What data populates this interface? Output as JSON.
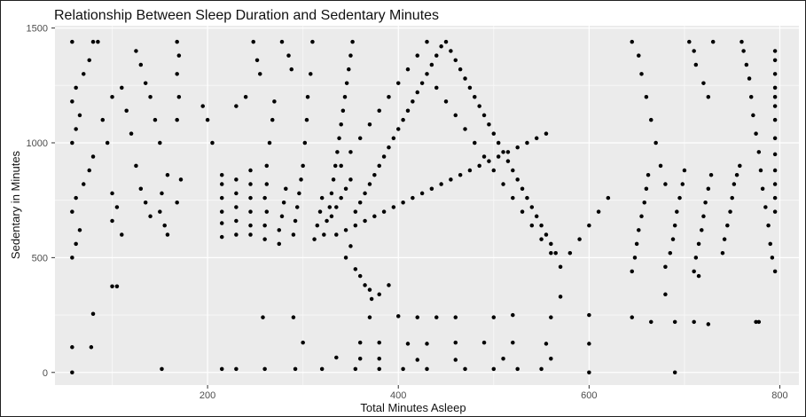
{
  "chart_data": {
    "type": "scatter",
    "title": "Relationship Between Sleep Duration and Sedentary Minutes",
    "xlabel": "Total Minutes Asleep",
    "ylabel": "Sedentary in Minutes",
    "xlim": [
      40,
      820
    ],
    "ylim": [
      -55,
      1510
    ],
    "x_ticks": [
      200,
      400,
      600,
      800
    ],
    "y_ticks": [
      0,
      500,
      1000,
      1500
    ],
    "grid": true,
    "legend": "none",
    "colors": {
      "panel": "#ebebeb",
      "grid": "#ffffff",
      "point": "#000000"
    },
    "points": [
      [
        58,
        0
      ],
      [
        58,
        110
      ],
      [
        78,
        110
      ],
      [
        152,
        15
      ],
      [
        215,
        15
      ],
      [
        230,
        15
      ],
      [
        260,
        15
      ],
      [
        292,
        15
      ],
      [
        320,
        15
      ],
      [
        355,
        15
      ],
      [
        380,
        15
      ],
      [
        405,
        15
      ],
      [
        430,
        15
      ],
      [
        470,
        15
      ],
      [
        500,
        15
      ],
      [
        525,
        15
      ],
      [
        550,
        15
      ],
      [
        600,
        0
      ],
      [
        690,
        0
      ],
      [
        258,
        240
      ],
      [
        290,
        240
      ],
      [
        370,
        240
      ],
      [
        400,
        245
      ],
      [
        420,
        240
      ],
      [
        440,
        240
      ],
      [
        460,
        240
      ],
      [
        500,
        240
      ],
      [
        520,
        250
      ],
      [
        560,
        240
      ],
      [
        600,
        250
      ],
      [
        645,
        240
      ],
      [
        665,
        220
      ],
      [
        690,
        220
      ],
      [
        710,
        220
      ],
      [
        725,
        210
      ],
      [
        775,
        220
      ],
      [
        300,
        130
      ],
      [
        360,
        130
      ],
      [
        380,
        130
      ],
      [
        410,
        125
      ],
      [
        430,
        125
      ],
      [
        460,
        130
      ],
      [
        490,
        130
      ],
      [
        520,
        130
      ],
      [
        555,
        125
      ],
      [
        600,
        125
      ],
      [
        335,
        65
      ],
      [
        360,
        60
      ],
      [
        380,
        60
      ],
      [
        420,
        55
      ],
      [
        460,
        55
      ],
      [
        510,
        60
      ],
      [
        560,
        60
      ],
      [
        80,
        255
      ],
      [
        100,
        375
      ],
      [
        105,
        375
      ],
      [
        680,
        340
      ],
      [
        715,
        420
      ],
      [
        570,
        330
      ],
      [
        58,
        500
      ],
      [
        62,
        560
      ],
      [
        66,
        620
      ],
      [
        58,
        700
      ],
      [
        62,
        760
      ],
      [
        70,
        820
      ],
      [
        76,
        880
      ],
      [
        80,
        940
      ],
      [
        58,
        1000
      ],
      [
        62,
        1060
      ],
      [
        66,
        1120
      ],
      [
        58,
        1180
      ],
      [
        62,
        1240
      ],
      [
        70,
        1300
      ],
      [
        76,
        1360
      ],
      [
        80,
        1440
      ],
      [
        58,
        1440
      ],
      [
        85,
        1440
      ],
      [
        90,
        1100
      ],
      [
        95,
        1000
      ],
      [
        100,
        780
      ],
      [
        105,
        720
      ],
      [
        100,
        660
      ],
      [
        110,
        600
      ],
      [
        100,
        1200
      ],
      [
        110,
        1240
      ],
      [
        115,
        1140
      ],
      [
        120,
        1040
      ],
      [
        125,
        900
      ],
      [
        130,
        800
      ],
      [
        135,
        740
      ],
      [
        140,
        680
      ],
      [
        125,
        1400
      ],
      [
        130,
        1340
      ],
      [
        135,
        1260
      ],
      [
        140,
        1200
      ],
      [
        145,
        1100
      ],
      [
        150,
        1000
      ],
      [
        158,
        860
      ],
      [
        152,
        780
      ],
      [
        150,
        700
      ],
      [
        155,
        640
      ],
      [
        158,
        600
      ],
      [
        168,
        1440
      ],
      [
        170,
        1380
      ],
      [
        168,
        1300
      ],
      [
        170,
        1200
      ],
      [
        168,
        1100
      ],
      [
        168,
        740
      ],
      [
        172,
        840
      ],
      [
        195,
        1160
      ],
      [
        200,
        1100
      ],
      [
        205,
        1000
      ],
      [
        215,
        590
      ],
      [
        215,
        650
      ],
      [
        215,
        700
      ],
      [
        215,
        760
      ],
      [
        215,
        820
      ],
      [
        215,
        860
      ],
      [
        230,
        600
      ],
      [
        230,
        660
      ],
      [
        230,
        720
      ],
      [
        230,
        780
      ],
      [
        230,
        840
      ],
      [
        230,
        1160
      ],
      [
        240,
        1200
      ],
      [
        245,
        600
      ],
      [
        245,
        640
      ],
      [
        245,
        700
      ],
      [
        245,
        760
      ],
      [
        245,
        820
      ],
      [
        245,
        880
      ],
      [
        248,
        1440
      ],
      [
        252,
        1360
      ],
      [
        255,
        1300
      ],
      [
        260,
        580
      ],
      [
        260,
        640
      ],
      [
        262,
        700
      ],
      [
        260,
        760
      ],
      [
        262,
        820
      ],
      [
        262,
        900
      ],
      [
        265,
        1000
      ],
      [
        268,
        1100
      ],
      [
        270,
        1180
      ],
      [
        275,
        560
      ],
      [
        275,
        620
      ],
      [
        278,
        680
      ],
      [
        280,
        740
      ],
      [
        282,
        800
      ],
      [
        278,
        1440
      ],
      [
        285,
        1380
      ],
      [
        288,
        1320
      ],
      [
        290,
        600
      ],
      [
        292,
        660
      ],
      [
        294,
        720
      ],
      [
        296,
        780
      ],
      [
        298,
        840
      ],
      [
        300,
        900
      ],
      [
        302,
        1000
      ],
      [
        304,
        1100
      ],
      [
        305,
        1200
      ],
      [
        308,
        1300
      ],
      [
        310,
        1440
      ],
      [
        312,
        580
      ],
      [
        315,
        640
      ],
      [
        318,
        700
      ],
      [
        320,
        760
      ],
      [
        322,
        600
      ],
      [
        325,
        660
      ],
      [
        328,
        720
      ],
      [
        330,
        780
      ],
      [
        332,
        840
      ],
      [
        334,
        900
      ],
      [
        336,
        960
      ],
      [
        338,
        1020
      ],
      [
        340,
        1080
      ],
      [
        342,
        1140
      ],
      [
        344,
        1200
      ],
      [
        346,
        1260
      ],
      [
        348,
        1320
      ],
      [
        350,
        1380
      ],
      [
        352,
        1440
      ],
      [
        345,
        500
      ],
      [
        350,
        550
      ],
      [
        355,
        450
      ],
      [
        360,
        420
      ],
      [
        365,
        380
      ],
      [
        370,
        360
      ],
      [
        372,
        320
      ],
      [
        380,
        340
      ],
      [
        390,
        380
      ],
      [
        330,
        680
      ],
      [
        335,
        720
      ],
      [
        340,
        760
      ],
      [
        345,
        800
      ],
      [
        350,
        840
      ],
      [
        355,
        700
      ],
      [
        360,
        740
      ],
      [
        365,
        780
      ],
      [
        370,
        820
      ],
      [
        375,
        860
      ],
      [
        380,
        900
      ],
      [
        385,
        940
      ],
      [
        390,
        980
      ],
      [
        395,
        1020
      ],
      [
        400,
        1060
      ],
      [
        405,
        1100
      ],
      [
        410,
        1140
      ],
      [
        415,
        1180
      ],
      [
        420,
        1220
      ],
      [
        425,
        1260
      ],
      [
        430,
        1300
      ],
      [
        435,
        1340
      ],
      [
        440,
        1380
      ],
      [
        445,
        1420
      ],
      [
        450,
        1440
      ],
      [
        455,
        1400
      ],
      [
        460,
        1360
      ],
      [
        465,
        1320
      ],
      [
        470,
        1280
      ],
      [
        475,
        1240
      ],
      [
        480,
        1200
      ],
      [
        485,
        1160
      ],
      [
        490,
        1120
      ],
      [
        495,
        1080
      ],
      [
        500,
        1040
      ],
      [
        505,
        1000
      ],
      [
        510,
        960
      ],
      [
        515,
        920
      ],
      [
        520,
        880
      ],
      [
        525,
        840
      ],
      [
        530,
        800
      ],
      [
        535,
        760
      ],
      [
        540,
        720
      ],
      [
        545,
        680
      ],
      [
        550,
        640
      ],
      [
        555,
        600
      ],
      [
        560,
        560
      ],
      [
        565,
        520
      ],
      [
        335,
        600
      ],
      [
        345,
        620
      ],
      [
        355,
        640
      ],
      [
        365,
        660
      ],
      [
        375,
        680
      ],
      [
        385,
        700
      ],
      [
        395,
        720
      ],
      [
        405,
        740
      ],
      [
        415,
        760
      ],
      [
        425,
        780
      ],
      [
        435,
        800
      ],
      [
        445,
        820
      ],
      [
        455,
        840
      ],
      [
        465,
        860
      ],
      [
        475,
        880
      ],
      [
        485,
        900
      ],
      [
        495,
        920
      ],
      [
        505,
        940
      ],
      [
        515,
        960
      ],
      [
        525,
        980
      ],
      [
        535,
        1000
      ],
      [
        545,
        1020
      ],
      [
        555,
        1040
      ],
      [
        340,
        900
      ],
      [
        350,
        960
      ],
      [
        360,
        1020
      ],
      [
        370,
        1080
      ],
      [
        380,
        1140
      ],
      [
        390,
        1200
      ],
      [
        400,
        1260
      ],
      [
        410,
        1320
      ],
      [
        420,
        1380
      ],
      [
        430,
        1440
      ],
      [
        440,
        1240
      ],
      [
        450,
        1180
      ],
      [
        460,
        1120
      ],
      [
        470,
        1060
      ],
      [
        480,
        1000
      ],
      [
        490,
        940
      ],
      [
        500,
        880
      ],
      [
        510,
        820
      ],
      [
        520,
        760
      ],
      [
        530,
        700
      ],
      [
        540,
        640
      ],
      [
        550,
        580
      ],
      [
        560,
        520
      ],
      [
        570,
        460
      ],
      [
        580,
        520
      ],
      [
        590,
        580
      ],
      [
        600,
        640
      ],
      [
        610,
        700
      ],
      [
        620,
        760
      ],
      [
        645,
        440
      ],
      [
        648,
        500
      ],
      [
        650,
        560
      ],
      [
        652,
        620
      ],
      [
        655,
        680
      ],
      [
        658,
        740
      ],
      [
        660,
        800
      ],
      [
        662,
        860
      ],
      [
        645,
        1440
      ],
      [
        652,
        1380
      ],
      [
        655,
        1300
      ],
      [
        660,
        1200
      ],
      [
        665,
        1100
      ],
      [
        670,
        1000
      ],
      [
        675,
        900
      ],
      [
        680,
        820
      ],
      [
        680,
        460
      ],
      [
        685,
        520
      ],
      [
        688,
        580
      ],
      [
        690,
        640
      ],
      [
        692,
        700
      ],
      [
        695,
        760
      ],
      [
        698,
        820
      ],
      [
        700,
        880
      ],
      [
        710,
        440
      ],
      [
        712,
        500
      ],
      [
        715,
        560
      ],
      [
        718,
        620
      ],
      [
        720,
        680
      ],
      [
        722,
        740
      ],
      [
        725,
        800
      ],
      [
        728,
        860
      ],
      [
        705,
        1440
      ],
      [
        710,
        1400
      ],
      [
        712,
        1340
      ],
      [
        720,
        1260
      ],
      [
        725,
        1200
      ],
      [
        730,
        1440
      ],
      [
        740,
        520
      ],
      [
        742,
        580
      ],
      [
        745,
        640
      ],
      [
        748,
        700
      ],
      [
        750,
        760
      ],
      [
        752,
        820
      ],
      [
        755,
        860
      ],
      [
        758,
        900
      ],
      [
        760,
        1440
      ],
      [
        762,
        1400
      ],
      [
        765,
        1340
      ],
      [
        768,
        1280
      ],
      [
        770,
        1200
      ],
      [
        772,
        1120
      ],
      [
        775,
        1040
      ],
      [
        778,
        960
      ],
      [
        780,
        880
      ],
      [
        782,
        800
      ],
      [
        785,
        720
      ],
      [
        788,
        640
      ],
      [
        790,
        560
      ],
      [
        792,
        500
      ],
      [
        795,
        440
      ],
      [
        778,
        220
      ],
      [
        795,
        1400
      ],
      [
        795,
        1360
      ],
      [
        795,
        1300
      ],
      [
        795,
        1240
      ],
      [
        795,
        1200
      ],
      [
        795,
        1160
      ],
      [
        795,
        1100
      ],
      [
        795,
        1020
      ],
      [
        795,
        950
      ],
      [
        795,
        880
      ],
      [
        795,
        820
      ],
      [
        795,
        760
      ],
      [
        795,
        700
      ]
    ]
  }
}
